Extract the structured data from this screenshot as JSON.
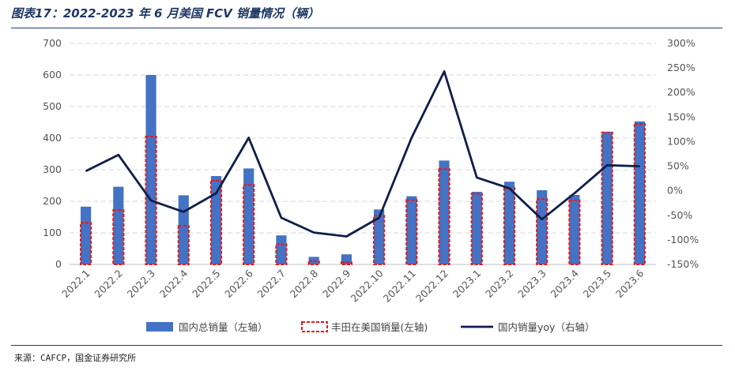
{
  "header": {
    "title": "图表17：2022-2023 年 6 月美国 FCV 销量情况（辆）"
  },
  "footer": {
    "source": "来源：CAFCP，国金证券研究所"
  },
  "colors": {
    "bar_total": "#4472c4",
    "bar_toyota_border": "#e31a1c",
    "line_yoy": "#0f1e4a",
    "grid": "#d9d9d9",
    "heading": "#1f3864"
  },
  "chart_data": {
    "type": "bar",
    "categories": [
      "2022.1",
      "2022.2",
      "2022.3",
      "2022.4",
      "2022.5",
      "2022.6",
      "2022.7",
      "2022.8",
      "2022.9",
      "2022.10",
      "2022.11",
      "2022.12",
      "2023.1",
      "2023.2",
      "2023.3",
      "2023.4",
      "2023.5",
      "2023.6"
    ],
    "series": [
      {
        "name": "国内总销量（左轴）",
        "type": "bar",
        "axis": "left",
        "values": [
          183,
          246,
          600,
          219,
          280,
          304,
          92,
          24,
          32,
          174,
          216,
          329,
          230,
          262,
          235,
          220,
          420,
          453
        ]
      },
      {
        "name": "丰田在美国销量(左轴)",
        "type": "bar-outline",
        "axis": "left",
        "values": [
          132,
          172,
          405,
          122,
          265,
          252,
          64,
          10,
          7,
          154,
          204,
          302,
          224,
          242,
          207,
          203,
          418,
          445
        ]
      },
      {
        "name": "国内销量yoy（右轴）",
        "type": "line",
        "axis": "right",
        "values": [
          40,
          73,
          -20,
          -43,
          -5,
          108,
          -55,
          -85,
          -93,
          -55,
          108,
          243,
          27,
          5,
          -58,
          -5,
          52,
          50
        ]
      }
    ],
    "y_left": {
      "min": 0,
      "max": 700,
      "ticks": [
        0,
        100,
        200,
        300,
        400,
        500,
        600,
        700
      ],
      "tick_labels": [
        "0",
        "100",
        "200",
        "300",
        "400",
        "500",
        "600",
        "700"
      ]
    },
    "y_right": {
      "min": -150,
      "max": 300,
      "ticks": [
        -150,
        -100,
        -50,
        0,
        50,
        100,
        150,
        200,
        250,
        300
      ],
      "tick_labels": [
        "-150%",
        "-100%",
        "-50%",
        "0%",
        "50%",
        "100%",
        "150%",
        "200%",
        "250%",
        "300%"
      ]
    },
    "grid": true,
    "legend_position": "bottom"
  }
}
